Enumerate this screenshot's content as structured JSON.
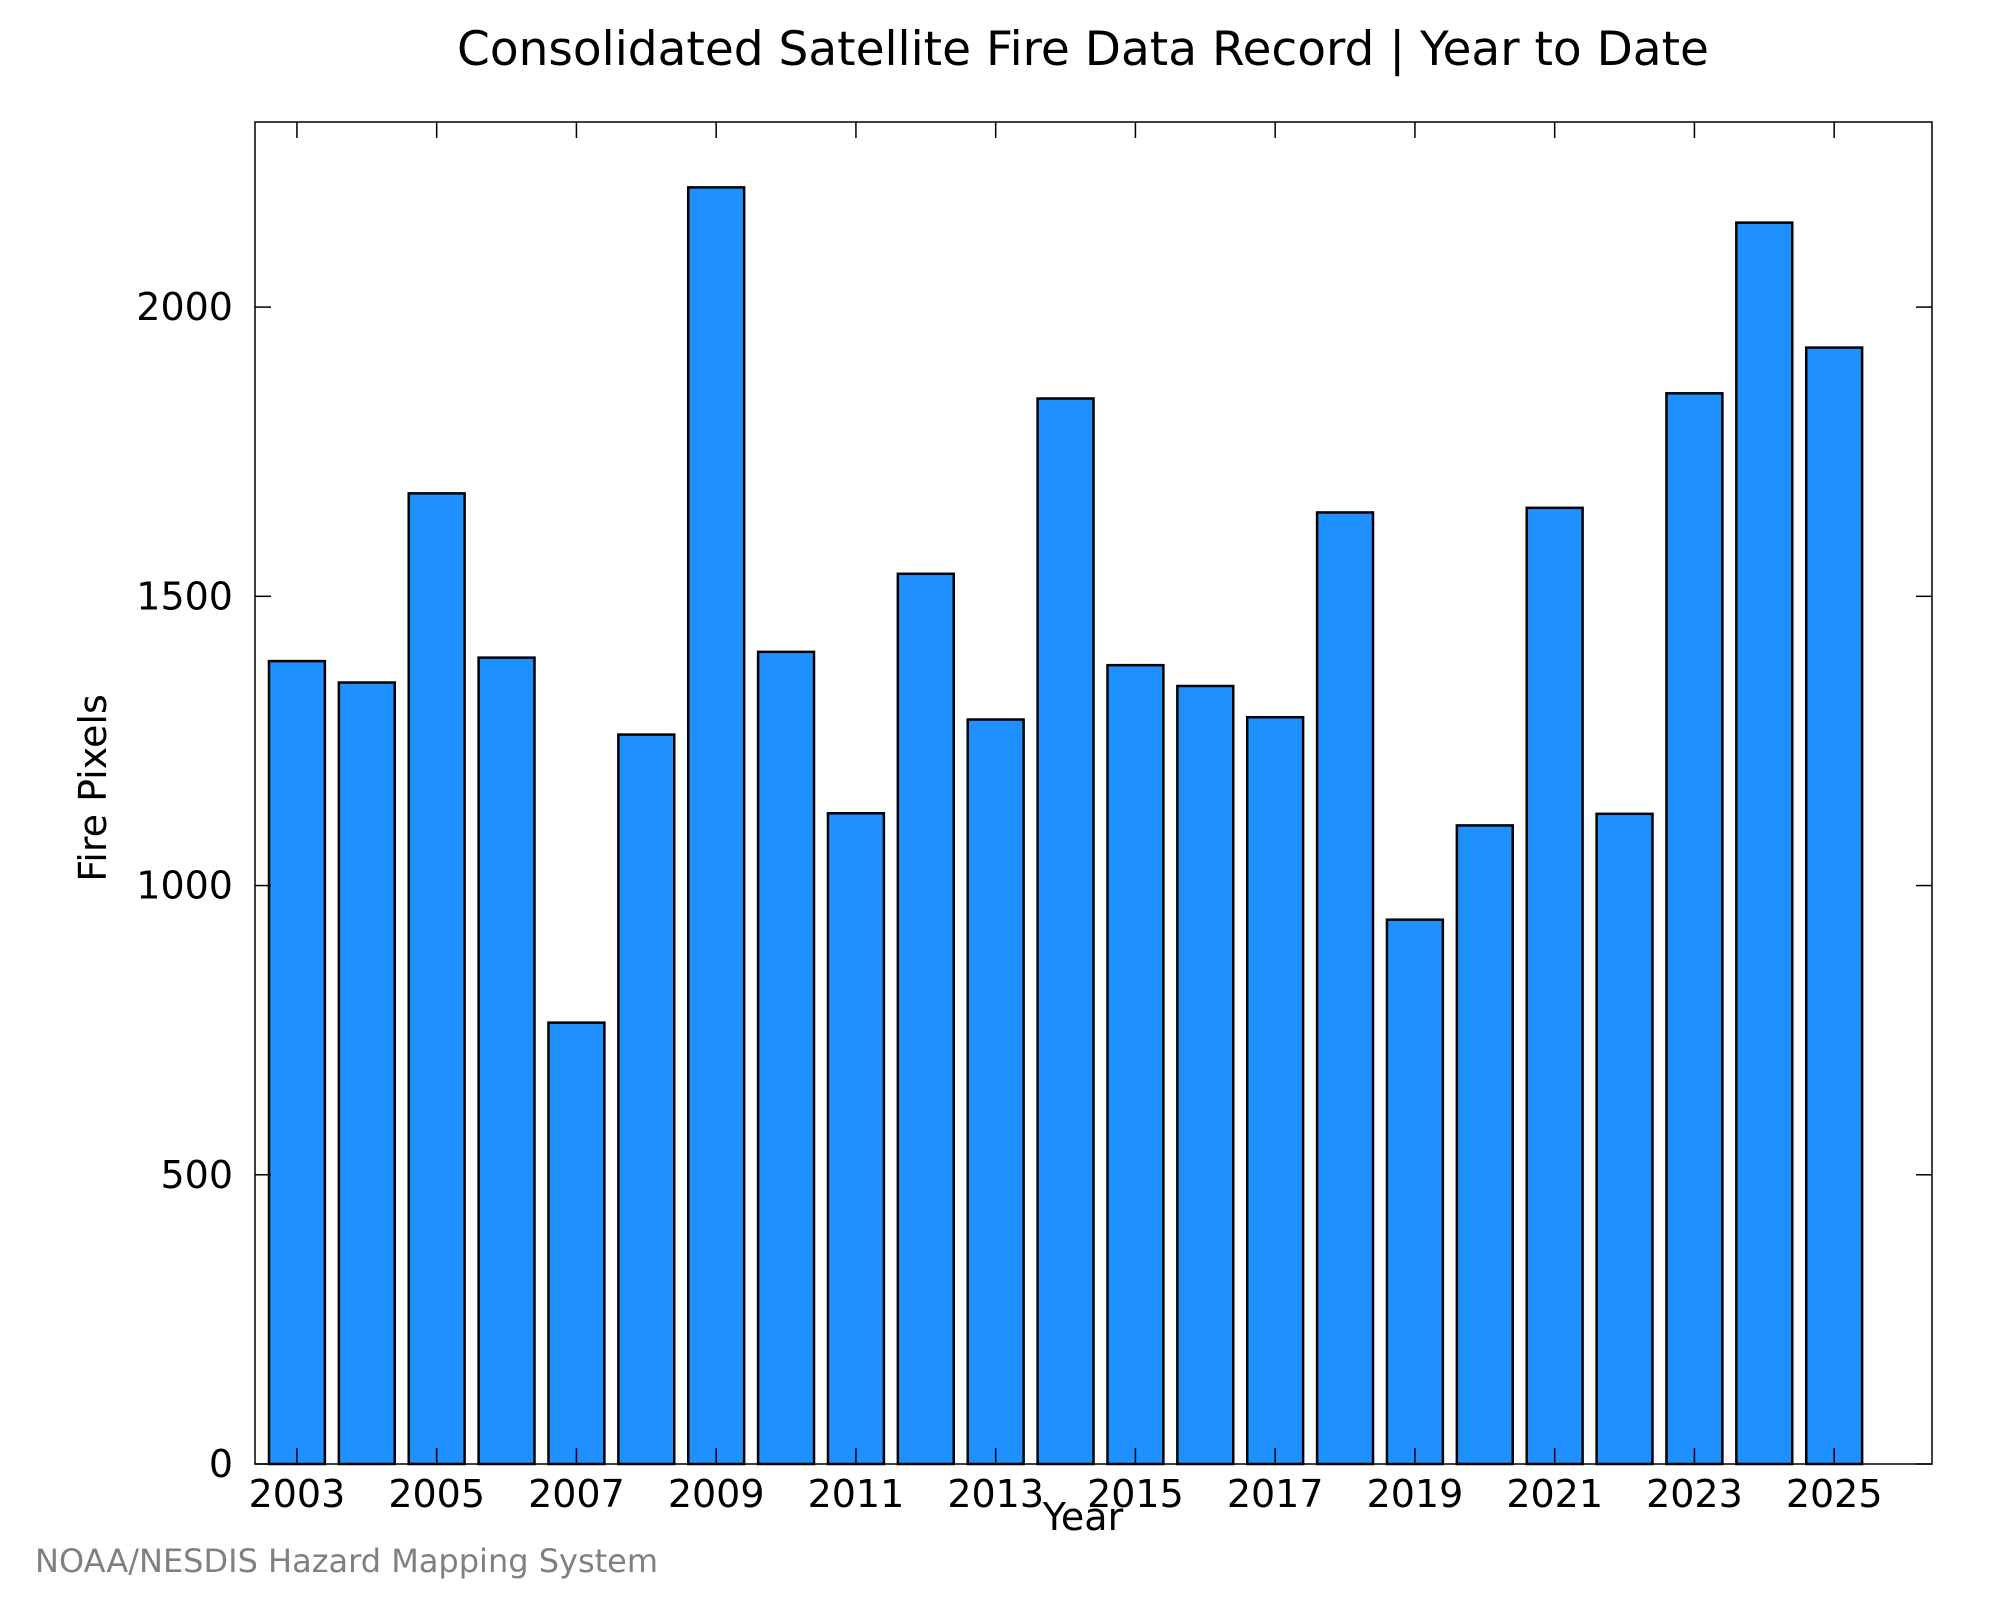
{
  "footer": {
    "credit": "NOAA/NESDIS Hazard Mapping System"
  },
  "chart_data": {
    "type": "bar",
    "title": "Consolidated Satellite Fire Data Record | Year to Date",
    "xlabel": "Year",
    "ylabel": "Fire Pixels",
    "categories": [
      2003,
      2004,
      2005,
      2006,
      2007,
      2008,
      2009,
      2010,
      2011,
      2012,
      2013,
      2014,
      2015,
      2016,
      2017,
      2018,
      2019,
      2020,
      2021,
      2022,
      2023,
      2024,
      2025
    ],
    "values": [
      1388,
      1351,
      1678,
      1394,
      763,
      1261,
      2207,
      1404,
      1125,
      1539,
      1287,
      1842,
      1381,
      1345,
      1291,
      1645,
      941,
      1104,
      1653,
      1124,
      1851,
      2146,
      1930
    ],
    "xtick_labels": [
      "2003",
      "2005",
      "2007",
      "2009",
      "2011",
      "2013",
      "2015",
      "2017",
      "2019",
      "2021",
      "2023",
      "2025"
    ],
    "yticks": [
      0,
      500,
      1000,
      1500,
      2000
    ],
    "ylim": [
      0,
      2320
    ],
    "xlim": [
      2002.4,
      2026.4
    ],
    "bar_color": "#1e90ff",
    "edge_color": "#000000",
    "grid": false,
    "legend": "none"
  }
}
